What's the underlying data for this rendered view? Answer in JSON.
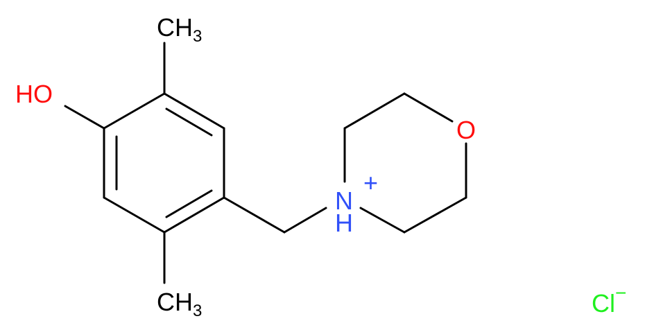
{
  "labels": {
    "methyl_top": {
      "text": "CH",
      "subscript": "3"
    },
    "methyl_bottom": {
      "text": "CH",
      "subscript": "3"
    },
    "hydroxyl": "HO",
    "oxygen": "O",
    "nitrogen": {
      "text": "N",
      "charge": "+",
      "hydrogen": "H"
    },
    "chloride": {
      "text": "Cl",
      "charge": "−"
    }
  }
}
